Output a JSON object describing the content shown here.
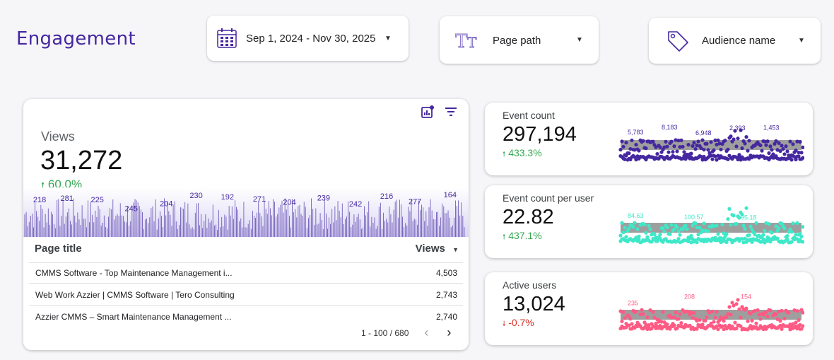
{
  "header": {
    "title": "Engagement"
  },
  "filters": {
    "date": {
      "label": "Sep 1, 2024 - Nov 30, 2025",
      "icon": "calendar-icon"
    },
    "page_path": {
      "label": "Page path",
      "icon": "text-type-icon"
    },
    "audience": {
      "label": "Audience name",
      "icon": "tag-icon"
    }
  },
  "views_card": {
    "label": "Views",
    "value": "31,272",
    "delta": "60.0%",
    "delta_direction": "up",
    "accent": "#4527a0",
    "sparkline_labels": [
      "218",
      "281",
      "225",
      "245",
      "204",
      "230",
      "192",
      "271",
      "204",
      "239",
      "242",
      "216",
      "277",
      "164"
    ],
    "table": {
      "columns": [
        "Page title",
        "Views"
      ],
      "rows": [
        {
          "title": "CMMS Software - Top Maintenance Management i...",
          "views": "4,503"
        },
        {
          "title": "Web Work Azzier | CMMS Software | Tero Consulting",
          "views": "2,743"
        },
        {
          "title": "Azzier CMMS – Smart Maintenance Management ...",
          "views": "2,740"
        }
      ],
      "pagination": "1 - 100 / 680"
    }
  },
  "kpis": [
    {
      "label": "Event count",
      "value": "297,194",
      "delta": "433.3%",
      "direction": "up",
      "color": "#4527a0",
      "spark_labels": [
        "5,783",
        "8,183",
        "6,948",
        "2,393",
        "1,453"
      ]
    },
    {
      "label": "Event count per user",
      "value": "22.82",
      "delta": "437.1%",
      "direction": "up",
      "color": "#3ee8c8",
      "spark_labels": [
        "84.63",
        "100.57",
        "95.18"
      ]
    },
    {
      "label": "Active users",
      "value": "13,024",
      "delta": "-0.7%",
      "direction": "down",
      "color": "#ff5a84",
      "spark_labels": [
        "235",
        "208",
        "154"
      ]
    }
  ],
  "colors": {
    "positive": "#34a853",
    "negative": "#d93025",
    "grey_bar": "#9e9e9e"
  }
}
